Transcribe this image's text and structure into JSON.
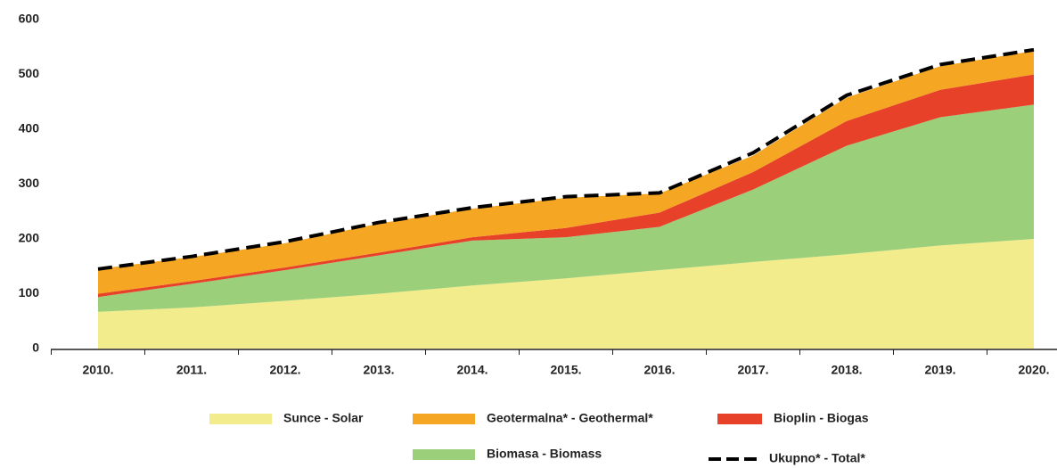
{
  "chart_data": {
    "type": "stacked_area",
    "categories": [
      "2010.",
      "2011.",
      "2012.",
      "2013.",
      "2014.",
      "2015.",
      "2016.",
      "2017.",
      "2018.",
      "2019.",
      "2020."
    ],
    "series": [
      {
        "name": "Sunce - Solar",
        "color": "#f2ec8c",
        "values": [
          67,
          75,
          87,
          100,
          115,
          128,
          143,
          158,
          172,
          188,
          200
        ]
      },
      {
        "name": "Biomasa - Biomass",
        "color": "#9ccf7a",
        "values": [
          27,
          43,
          56,
          70,
          82,
          75,
          79,
          132,
          198,
          234,
          245
        ]
      },
      {
        "name": "Bioplin -    Biogas",
        "color": "#e8412a",
        "values": [
          6,
          5,
          5,
          5,
          6,
          17,
          26,
          32,
          45,
          50,
          55
        ]
      },
      {
        "name": "Geotermalna* - Geothermal*",
        "color": "#f5a623",
        "values": [
          45,
          44,
          44,
          53,
          52,
          55,
          35,
          30,
          43,
          43,
          43
        ]
      }
    ],
    "total": {
      "name": "Ukupno* - Total*",
      "color": "#000000",
      "values": [
        145,
        168,
        195,
        230,
        257,
        277,
        284,
        357,
        462,
        518,
        545
      ]
    },
    "ylim": [
      0,
      600
    ],
    "yticks": [
      0,
      100,
      200,
      300,
      400,
      500,
      600
    ],
    "grid": false
  }
}
